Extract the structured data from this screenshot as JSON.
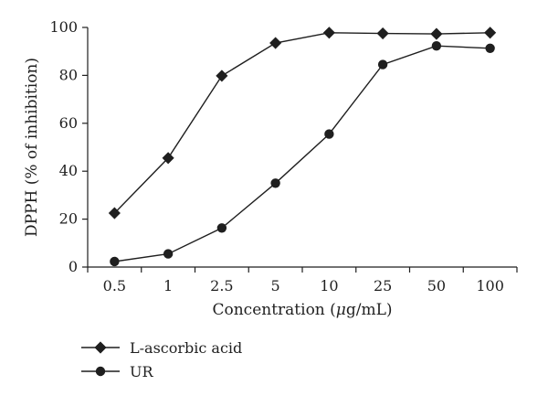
{
  "chart_data": {
    "type": "line",
    "xlabel_main": "Concentration (",
    "xlabel_mu": "μ",
    "xlabel_unit": "g/mL)",
    "ylabel": "DPPH (% of inhibition)",
    "categories": [
      "0.5",
      "1",
      "2.5",
      "5",
      "10",
      "25",
      "50",
      "100"
    ],
    "ylim": [
      0,
      100
    ],
    "yticks": [
      "0",
      "20",
      "40",
      "60",
      "80",
      "100"
    ],
    "grid": false,
    "legend_placement": "bottom-left",
    "series": [
      {
        "name": "L-ascorbic acid",
        "marker": "diamond",
        "values": [
          22.5,
          45.5,
          79.8,
          93.5,
          97.8,
          97.5,
          97.3,
          97.8
        ]
      },
      {
        "name": "UR",
        "marker": "circle",
        "values": [
          2.3,
          5.5,
          16.3,
          35.0,
          55.5,
          84.5,
          92.3,
          91.3
        ]
      }
    ]
  },
  "colors": {
    "ink": "#1f1f1f",
    "background": "#ffffff"
  }
}
